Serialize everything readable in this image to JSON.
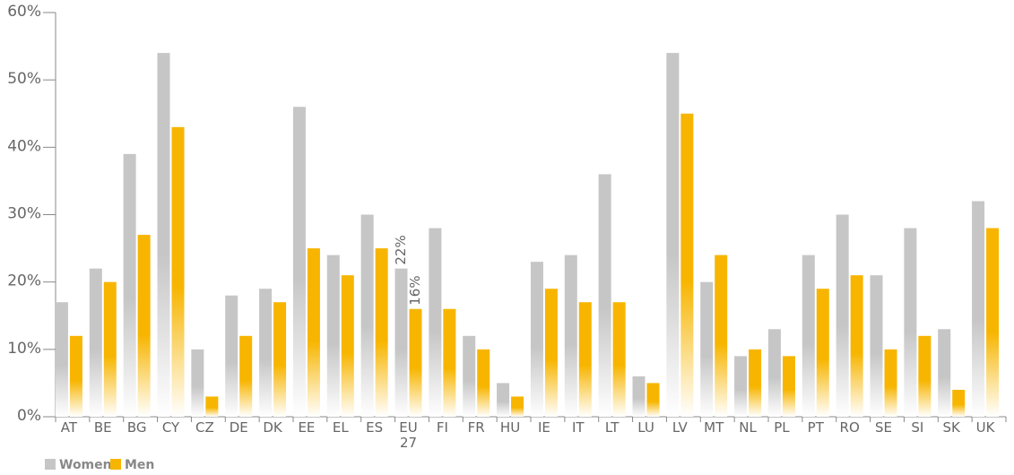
{
  "chart_data": {
    "type": "bar",
    "categories": [
      "AT",
      "BE",
      "BG",
      "CY",
      "CZ",
      "DE",
      "DK",
      "EE",
      "EL",
      "ES",
      "EU 27",
      "FI",
      "FR",
      "HU",
      "IE",
      "IT",
      "LT",
      "LU",
      "LV",
      "MT",
      "NL",
      "PL",
      "PT",
      "RO",
      "SE",
      "SI",
      "SK",
      "UK"
    ],
    "series": [
      {
        "name": "Women",
        "color": "#c6c6c6",
        "values": [
          17,
          22,
          39,
          54,
          10,
          18,
          19,
          46,
          24,
          30,
          22,
          28,
          12,
          5,
          23,
          24,
          36,
          6,
          54,
          20,
          9,
          13,
          24,
          30,
          21,
          28,
          13,
          32
        ],
        "value_labels": [
          null,
          null,
          null,
          null,
          null,
          null,
          null,
          null,
          null,
          null,
          "22%",
          null,
          null,
          null,
          null,
          null,
          null,
          null,
          null,
          null,
          null,
          null,
          null,
          null,
          null,
          null,
          null,
          null
        ]
      },
      {
        "name": "Men",
        "color": "#f7b500",
        "values": [
          12,
          20,
          27,
          43,
          3,
          12,
          17,
          25,
          21,
          25,
          16,
          16,
          10,
          3,
          19,
          17,
          17,
          5,
          45,
          24,
          10,
          9,
          19,
          21,
          10,
          12,
          4,
          28
        ],
        "value_labels": [
          null,
          null,
          null,
          null,
          null,
          null,
          null,
          null,
          null,
          null,
          "16%",
          null,
          null,
          null,
          null,
          null,
          null,
          null,
          null,
          null,
          null,
          null,
          null,
          null,
          null,
          null,
          null,
          null
        ]
      }
    ],
    "ylim": [
      0,
      60
    ],
    "yticks": [
      {
        "value": 0,
        "label": "0%"
      },
      {
        "value": 10,
        "label": "10%"
      },
      {
        "value": 20,
        "label": "20%"
      },
      {
        "value": 30,
        "label": "30%"
      },
      {
        "value": 40,
        "label": "40%"
      },
      {
        "value": 50,
        "label": "50%"
      },
      {
        "value": 60,
        "label": "60%"
      }
    ],
    "legend": "bottom-left"
  }
}
